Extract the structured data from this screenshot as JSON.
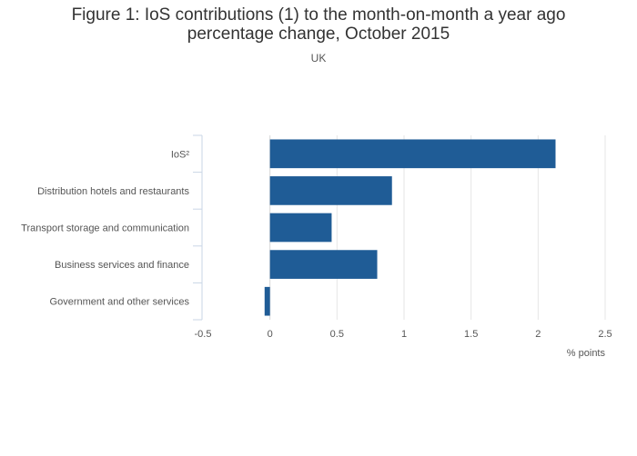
{
  "chart_data": {
    "type": "bar",
    "orientation": "horizontal",
    "title_line1": "Figure 1: IoS contributions (1) to the month-on-month a year ago",
    "title_line2": "percentage change, October 2015",
    "subtitle": "UK",
    "xlabel": "% points",
    "ylabel": "",
    "categories": [
      "IoS²",
      "Distribution hotels and restaurants",
      "Transport storage and communication",
      "Business services and finance",
      "Government and other services"
    ],
    "values": [
      2.13,
      0.91,
      0.46,
      0.8,
      -0.04
    ],
    "xlim": [
      -0.5,
      2.5
    ],
    "xticks": [
      -0.5,
      0,
      0.5,
      1,
      1.5,
      2,
      2.5
    ],
    "xtick_labels": [
      "-0.5",
      "0",
      "0.5",
      "1",
      "1.5",
      "2",
      "2.5"
    ],
    "bar_color": "#1f5c96",
    "grid": true
  }
}
